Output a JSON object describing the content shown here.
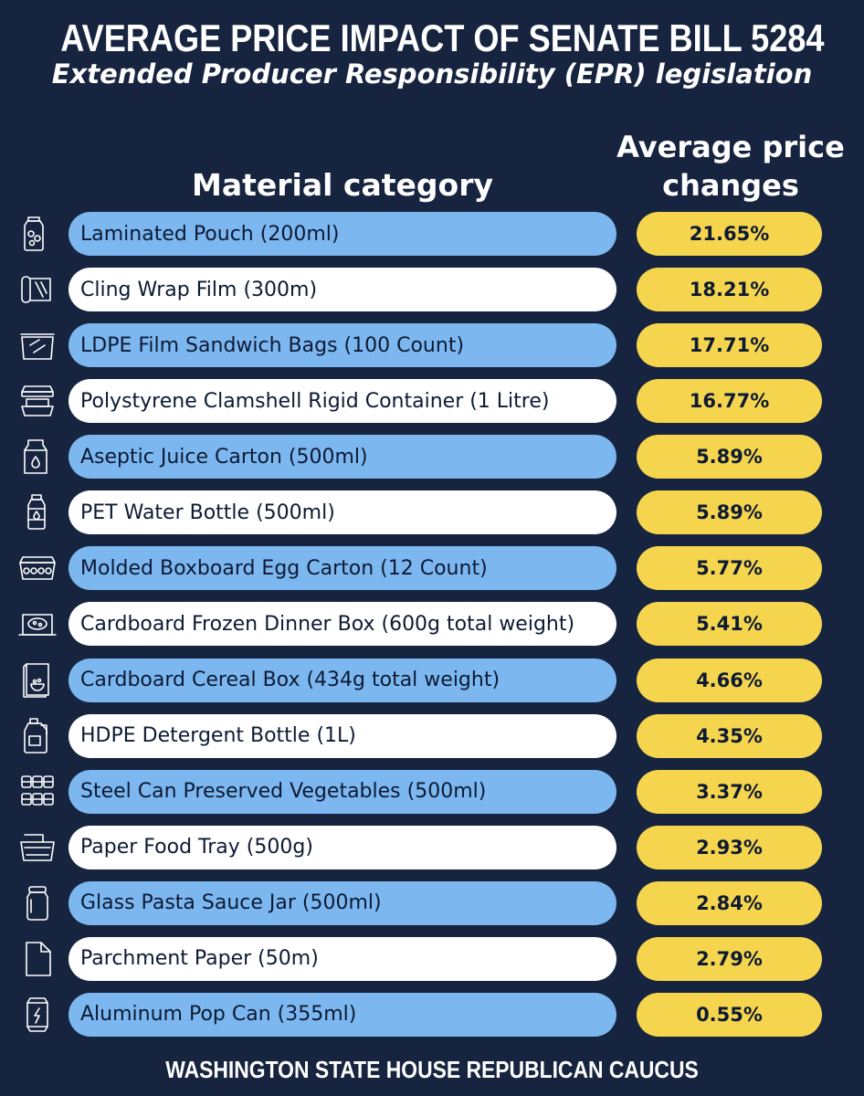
{
  "header": {
    "title": "AVERAGE PRICE IMPACT OF SENATE BILL 5284",
    "subtitle": "Extended Producer Responsibility (EPR) legislation"
  },
  "columns": {
    "material": "Material category",
    "price_line1": "Average price",
    "price_line2": "changes"
  },
  "footer": "WASHINGTON STATE HOUSE REPUBLICAN CAUCUS",
  "colors": {
    "background": "#16243f",
    "row_blue": "#7cb7f0",
    "row_white": "#ffffff",
    "value_pill": "#f6d54e"
  },
  "rows": [
    {
      "label": "Laminated Pouch (200ml)",
      "value_text": "21.65%",
      "icon": "pouch-icon"
    },
    {
      "label": "Cling Wrap Film (300m)",
      "value_text": "18.21%",
      "icon": "cling-wrap-icon"
    },
    {
      "label": "LDPE Film Sandwich Bags (100 Count)",
      "value_text": "17.71%",
      "icon": "sandwich-bag-icon"
    },
    {
      "label": "Polystyrene Clamshell Rigid Container (1 Litre)",
      "value_text": "16.77%",
      "icon": "clamshell-container-icon"
    },
    {
      "label": "Aseptic Juice Carton (500ml)",
      "value_text": "5.89%",
      "icon": "juice-carton-icon"
    },
    {
      "label": "PET Water Bottle (500ml)",
      "value_text": "5.89%",
      "icon": "water-bottle-icon"
    },
    {
      "label": "Molded Boxboard Egg Carton (12 Count)",
      "value_text": "5.77%",
      "icon": "egg-carton-icon"
    },
    {
      "label": "Cardboard Frozen Dinner Box (600g total weight)",
      "value_text": "5.41%",
      "icon": "dinner-box-icon"
    },
    {
      "label": "Cardboard Cereal Box (434g total weight)",
      "value_text": "4.66%",
      "icon": "cereal-box-icon"
    },
    {
      "label": "HDPE Detergent Bottle (1L)",
      "value_text": "4.35%",
      "icon": "detergent-bottle-icon"
    },
    {
      "label": "Steel Can Preserved Vegetables (500ml)",
      "value_text": "3.37%",
      "icon": "steel-cans-icon"
    },
    {
      "label": "Paper Food Tray (500g)",
      "value_text": "2.93%",
      "icon": "food-tray-icon"
    },
    {
      "label": "Glass Pasta Sauce Jar (500ml)",
      "value_text": "2.84%",
      "icon": "glass-jar-icon"
    },
    {
      "label": "Parchment Paper (50m)",
      "value_text": "2.79%",
      "icon": "paper-sheet-icon"
    },
    {
      "label": "Aluminum Pop Can (355ml)",
      "value_text": "0.55%",
      "icon": "pop-can-icon"
    }
  ],
  "chart_data": {
    "type": "table",
    "title": "AVERAGE PRICE IMPACT OF SENATE BILL 5284",
    "subtitle": "Extended Producer Responsibility (EPR) legislation",
    "columns": [
      "Material category",
      "Average price changes"
    ],
    "categories": [
      "Laminated Pouch (200ml)",
      "Cling Wrap Film (300m)",
      "LDPE Film Sandwich Bags (100 Count)",
      "Polystyrene Clamshell Rigid Container (1 Litre)",
      "Aseptic Juice Carton (500ml)",
      "PET Water Bottle (500ml)",
      "Molded Boxboard Egg Carton (12 Count)",
      "Cardboard Frozen Dinner Box (600g total weight)",
      "Cardboard Cereal Box (434g total weight)",
      "HDPE Detergent Bottle (1L)",
      "Steel Can Preserved Vegetables (500ml)",
      "Paper Food Tray (500g)",
      "Glass Pasta Sauce Jar (500ml)",
      "Parchment Paper (50m)",
      "Aluminum Pop Can (355ml)"
    ],
    "values": [
      21.65,
      18.21,
      17.71,
      16.77,
      5.89,
      5.89,
      5.77,
      5.41,
      4.66,
      4.35,
      3.37,
      2.93,
      2.84,
      2.79,
      0.55
    ]
  }
}
